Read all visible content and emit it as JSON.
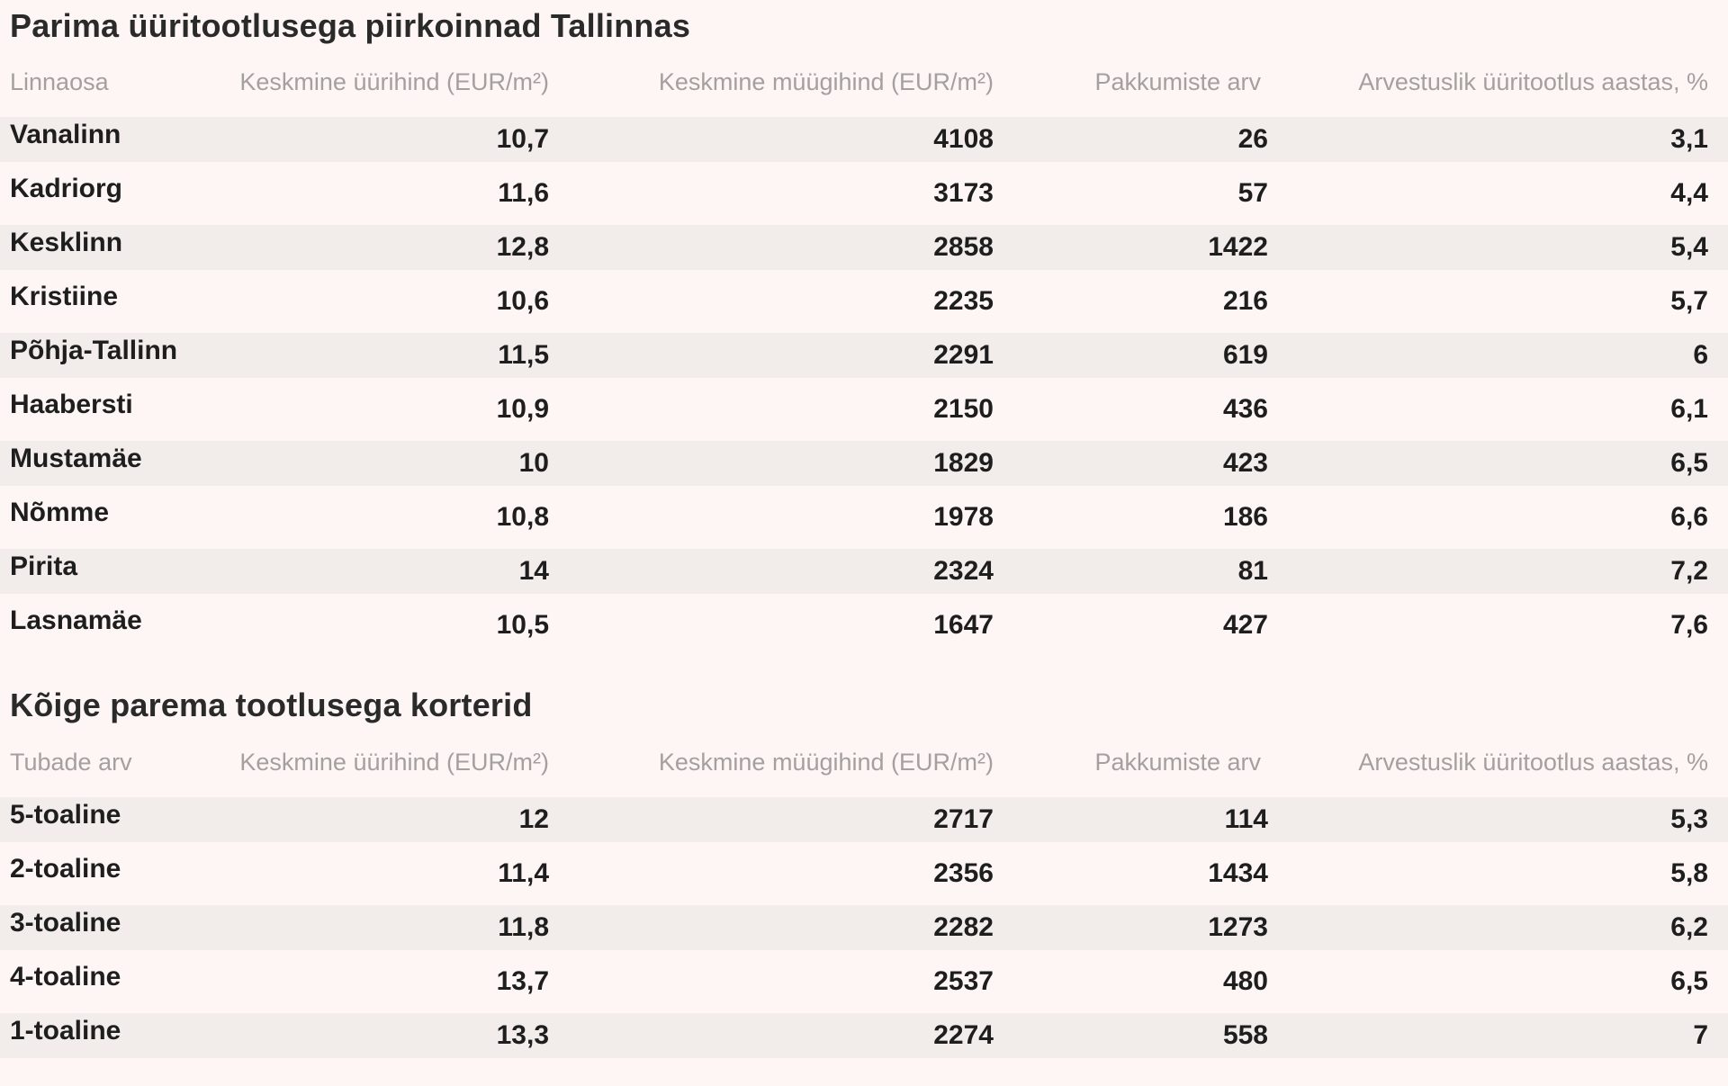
{
  "table1": {
    "title": "Parima üüritootlusega piirkoinnad Tallinnas",
    "headers": [
      "Linnaosa",
      "Keskmine üürihind (EUR/m²)",
      "Keskmine müügihind (EUR/m²)",
      "Pakkumiste arv",
      "Arvestuslik üüritootlus aastas, %"
    ],
    "rows": [
      [
        "Vanalinn",
        "10,7",
        "4108",
        "26",
        "3,1"
      ],
      [
        "Kadriorg",
        "11,6",
        "3173",
        "57",
        "4,4"
      ],
      [
        "Kesklinn",
        "12,8",
        "2858",
        "1422",
        "5,4"
      ],
      [
        "Kristiine",
        "10,6",
        "2235",
        "216",
        "5,7"
      ],
      [
        "Põhja-Tallinn",
        "11,5",
        "2291",
        "619",
        "6"
      ],
      [
        "Haabersti",
        "10,9",
        "2150",
        "436",
        "6,1"
      ],
      [
        "Mustamäe",
        "10",
        "1829",
        "423",
        "6,5"
      ],
      [
        "Nõmme",
        "10,8",
        "1978",
        "186",
        "6,6"
      ],
      [
        "Pirita",
        "14",
        "2324",
        "81",
        "7,2"
      ],
      [
        "Lasnamäe",
        "10,5",
        "1647",
        "427",
        "7,6"
      ]
    ]
  },
  "table2": {
    "title": "Kõige parema tootlusega korterid",
    "headers": [
      "Tubade arv",
      "Keskmine üürihind (EUR/m²)",
      "Keskmine müügihind (EUR/m²)",
      "Pakkumiste arv",
      "Arvestuslik üüritootlus aastas, %"
    ],
    "rows": [
      [
        "5-toaline",
        "12",
        "2717",
        "114",
        "5,3"
      ],
      [
        "2-toaline",
        "11,4",
        "2356",
        "1434",
        "5,8"
      ],
      [
        "3-toaline",
        "11,8",
        "2282",
        "1273",
        "6,2"
      ],
      [
        "4-toaline",
        "13,7",
        "2537",
        "480",
        "6,5"
      ],
      [
        "1-toaline",
        "13,3",
        "2274",
        "558",
        "7"
      ]
    ]
  },
  "colors": {
    "background": "#fdf6f4",
    "stripe": "#f2ecea",
    "header_text": "#a4a09f",
    "body_text": "#1e1e1e"
  }
}
